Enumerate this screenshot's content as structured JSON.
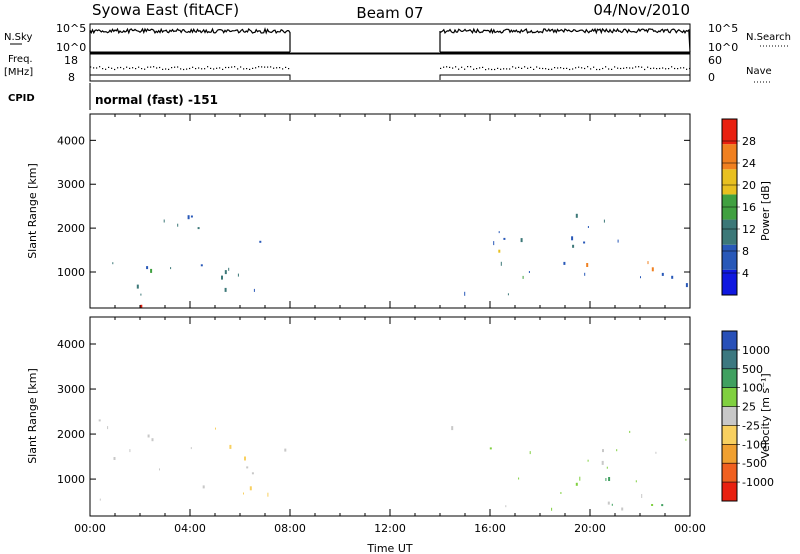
{
  "header": {
    "site": "Syowa East (fitACF)",
    "beam": "Beam 07",
    "date": "04/Nov/2010"
  },
  "top_panels": {
    "nsky_label": "N.Sky",
    "nsky_ticks": [
      "10^5",
      "10^0"
    ],
    "nsearch_label": "N.Search",
    "nsearch_ticks": [
      "10^5",
      "10^0"
    ],
    "freq_label": "Freq.",
    "freq_unit": "[MHz]",
    "freq_ticks": [
      "18",
      "8"
    ],
    "nave_label": "Nave",
    "nave_ticks": [
      "60",
      "0"
    ],
    "cpid_label": "CPID",
    "cpid_text": "normal (fast) -151"
  },
  "chart_data": [
    {
      "type": "heatmap",
      "panel": "power",
      "ylabel": "Slant Range [km]",
      "xlabel": "",
      "ylim": [
        180,
        4600
      ],
      "xlim": [
        0,
        24
      ],
      "yticks": [
        1000,
        2000,
        3000,
        4000
      ],
      "colorbar_label": "Power [dB]",
      "colorbar_ticks": [
        "28",
        "24",
        "20",
        "16",
        "12",
        "8",
        "4"
      ],
      "colorbar_range": [
        0,
        30
      ],
      "colors": [
        "#1018e0",
        "#2858b8",
        "#3c7878",
        "#40a040",
        "#e8c020",
        "#f08020",
        "#e82010"
      ],
      "data_segments": [
        [
          0,
          8
        ],
        [
          14,
          24
        ]
      ],
      "features": [
        {
          "t0": 0.0,
          "t1": 8.0,
          "r0": 180,
          "r1": 2300,
          "level": 8
        },
        {
          "t0": 0.0,
          "t1": 3.3,
          "r0": 180,
          "r1": 450,
          "level": 26
        },
        {
          "t0": 1.6,
          "t1": 2.6,
          "r0": 500,
          "r1": 1200,
          "level": 18
        },
        {
          "t0": 4.9,
          "t1": 5.9,
          "r0": 800,
          "r1": 1600,
          "level": 12
        },
        {
          "t0": 14.0,
          "t1": 24.0,
          "r0": 180,
          "r1": 2300,
          "level": 8
        },
        {
          "t0": 15.8,
          "t1": 17.5,
          "r0": 600,
          "r1": 1500,
          "level": 18
        },
        {
          "t0": 19.3,
          "t1": 22.5,
          "r0": 350,
          "r1": 1200,
          "level": 24
        }
      ]
    },
    {
      "type": "heatmap",
      "panel": "velocity",
      "ylabel": "Slant Range [km]",
      "xlabel": "Time UT",
      "ylim": [
        180,
        4600
      ],
      "xlim": [
        0,
        24
      ],
      "yticks": [
        1000,
        2000,
        3000,
        4000
      ],
      "xticks": [
        "00:00",
        "04:00",
        "08:00",
        "12:00",
        "16:00",
        "20:00",
        "00:00"
      ],
      "colorbar_label": "Velocity [m s⁻¹]",
      "colorbar_ticks": [
        "1000",
        "500",
        "100",
        "25",
        "-25",
        "-100",
        "-500",
        "-1000"
      ],
      "colorbar_range": [
        -1200,
        1200
      ],
      "colors": [
        "#e82010",
        "#f06020",
        "#f0a030",
        "#f8d060",
        "#c8c8c8",
        "#80d040",
        "#40a060",
        "#3c7880",
        "#2850b8"
      ],
      "data_segments": [
        [
          0,
          8
        ],
        [
          14,
          24
        ]
      ],
      "features": [
        {
          "t0": 0.0,
          "t1": 8.0,
          "r0": 180,
          "r1": 2300,
          "level": -100
        },
        {
          "t0": 4.5,
          "t1": 6.2,
          "r0": 700,
          "r1": 1600,
          "level": -300
        },
        {
          "t0": 14.0,
          "t1": 24.0,
          "r0": 180,
          "r1": 2300,
          "level": 200
        },
        {
          "t0": 19.0,
          "t1": 23.0,
          "r0": 300,
          "r1": 1100,
          "level": 400
        }
      ]
    }
  ]
}
